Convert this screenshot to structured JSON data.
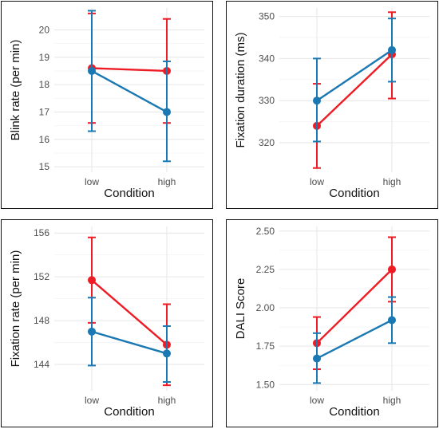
{
  "colors": {
    "red": "#ee1c25",
    "blue": "#1a78b3"
  },
  "chart_data": [
    {
      "type": "line",
      "xlabel": "Condition",
      "ylabel": "Blink rate (per min)",
      "categories": [
        "low",
        "high"
      ],
      "ylim": [
        14.8,
        20.8
      ],
      "yticks": [
        15,
        16,
        17,
        18,
        19,
        20
      ],
      "series": [
        {
          "color": "#ee1c25",
          "values": [
            18.6,
            18.5
          ],
          "error_low": [
            16.6,
            16.6
          ],
          "error_high": [
            20.6,
            20.4
          ]
        },
        {
          "color": "#1a78b3",
          "values": [
            18.5,
            17.0
          ],
          "error_low": [
            16.3,
            15.2
          ],
          "error_high": [
            20.7,
            18.85
          ]
        }
      ]
    },
    {
      "type": "line",
      "xlabel": "Condition",
      "ylabel": "Fixation duration (ms)",
      "categories": [
        "low",
        "high"
      ],
      "ylim": [
        313,
        352
      ],
      "yticks": [
        320,
        330,
        340,
        350
      ],
      "series": [
        {
          "color": "#ee1c25",
          "values": [
            324,
            341
          ],
          "error_low": [
            314,
            330.5
          ],
          "error_high": [
            334,
            351
          ]
        },
        {
          "color": "#1a78b3",
          "values": [
            330,
            342
          ],
          "error_low": [
            320.3,
            334.5
          ],
          "error_high": [
            340,
            349.5
          ]
        }
      ]
    },
    {
      "type": "line",
      "xlabel": "Condition",
      "ylabel": "Fixation rate (per min)",
      "categories": [
        "low",
        "high"
      ],
      "ylim": [
        141.6,
        156.6
      ],
      "yticks": [
        144,
        148,
        152,
        156
      ],
      "series": [
        {
          "color": "#ee1c25",
          "values": [
            151.7,
            145.8
          ],
          "error_low": [
            147.8,
            142.1
          ],
          "error_high": [
            155.6,
            149.5
          ]
        },
        {
          "color": "#1a78b3",
          "values": [
            147.0,
            145.0
          ],
          "error_low": [
            143.9,
            142.4
          ],
          "error_high": [
            150.1,
            147.5
          ]
        }
      ]
    },
    {
      "type": "line",
      "xlabel": "Condition",
      "ylabel": "DALI Score",
      "categories": [
        "low",
        "high"
      ],
      "ylim": [
        1.46,
        2.53
      ],
      "yticks": [
        "1.50",
        "1.75",
        "2.00",
        "2.25",
        "2.50"
      ],
      "series": [
        {
          "color": "#ee1c25",
          "values": [
            1.77,
            2.25
          ],
          "error_low": [
            1.6,
            2.04
          ],
          "error_high": [
            1.94,
            2.46
          ]
        },
        {
          "color": "#1a78b3",
          "values": [
            1.67,
            1.92
          ],
          "error_low": [
            1.51,
            1.77
          ],
          "error_high": [
            1.835,
            2.07
          ]
        }
      ]
    }
  ]
}
